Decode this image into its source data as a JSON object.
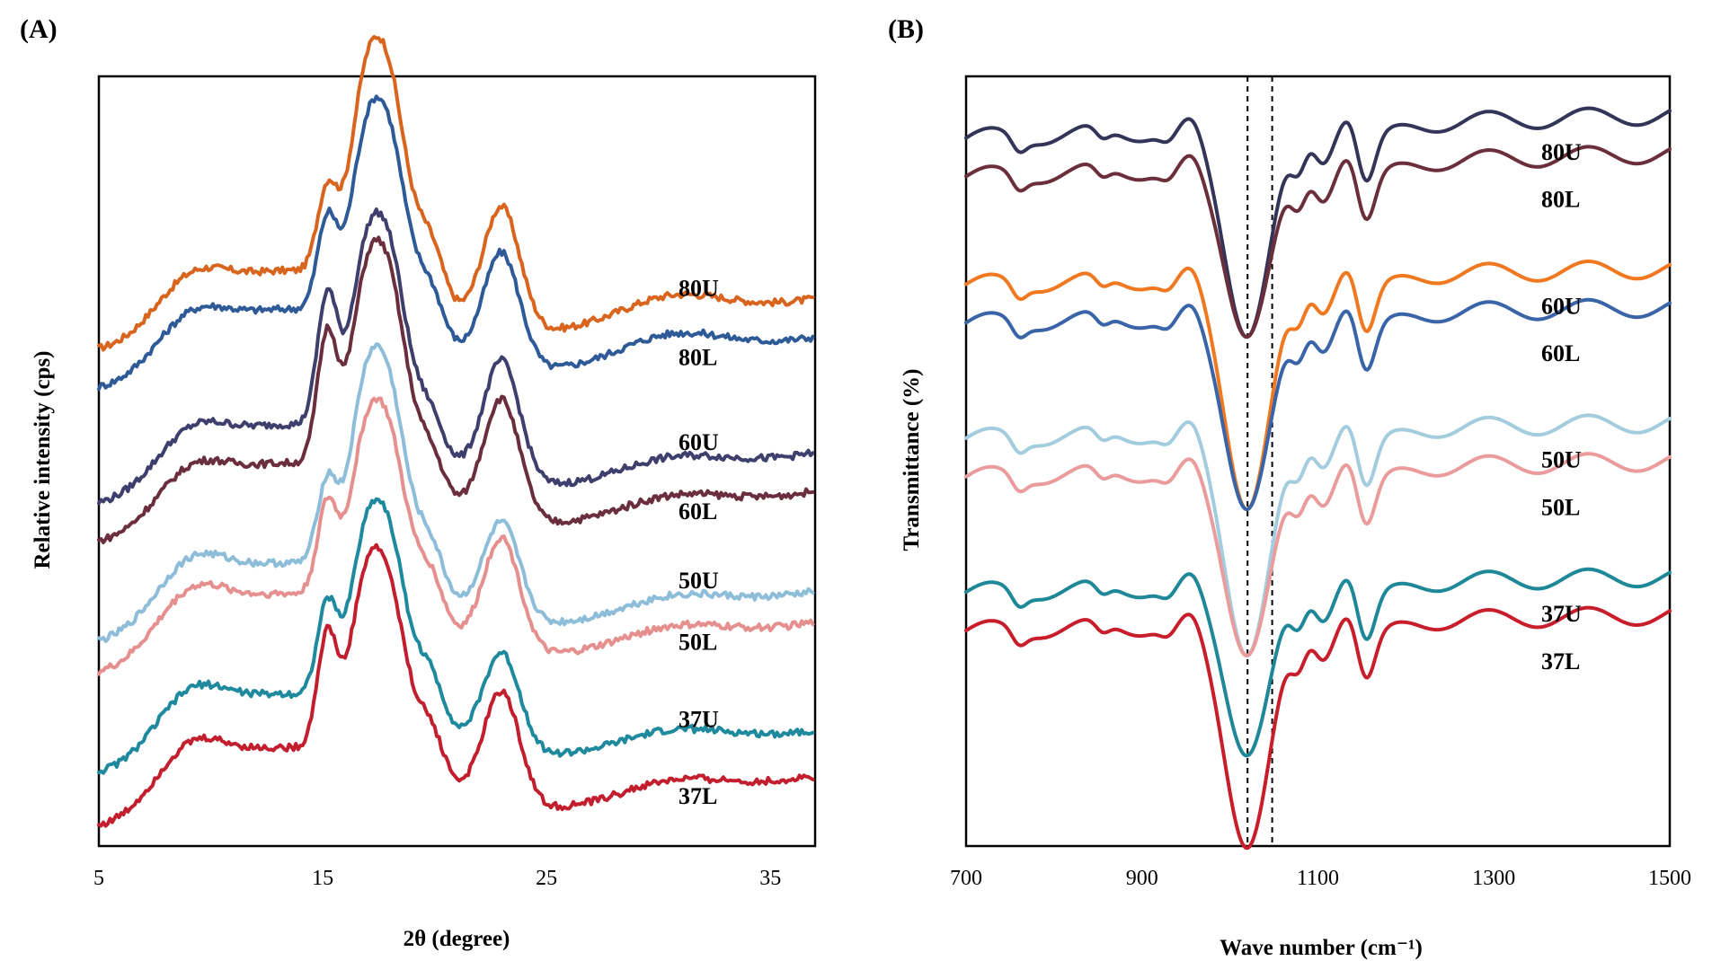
{
  "chart_data": [
    {
      "panel_label": "(A)",
      "type": "line",
      "xlabel": "2θ (degree)",
      "ylabel": "Relative intensity  (cps)",
      "xlim": [
        5,
        37
      ],
      "xticks": [
        "5",
        "15",
        "25",
        "35"
      ],
      "yticks_shown": false,
      "legend": "none (inline labels at right end of each trace)",
      "ylim": [
        0,
        100
      ],
      "series": [
        {
          "name": "80U",
          "color": "#D9641E",
          "baseline": 64,
          "peaks": [
            [
              9.0,
              6
            ],
            [
              15.2,
              11
            ],
            [
              16.8,
              20
            ],
            [
              18.0,
              26
            ],
            [
              19.8,
              8
            ],
            [
              23.0,
              15
            ],
            [
              30.5,
              4
            ]
          ],
          "end": 71
        },
        {
          "name": "80L",
          "color": "#2E5B98",
          "baseline": 59,
          "peaks": [
            [
              9.0,
              6
            ],
            [
              15.2,
              12
            ],
            [
              16.8,
              18
            ],
            [
              18.0,
              24
            ],
            [
              19.8,
              7
            ],
            [
              23.0,
              14
            ],
            [
              30.5,
              4
            ]
          ],
          "end": 66
        },
        {
          "name": "60U",
          "color": "#3F3F6E",
          "baseline": 44,
          "peaks": [
            [
              9.0,
              6
            ],
            [
              15.2,
              17
            ],
            [
              16.8,
              18
            ],
            [
              18.0,
              24
            ],
            [
              19.8,
              6
            ],
            [
              23.0,
              15
            ],
            [
              30.5,
              3
            ]
          ],
          "end": 51
        },
        {
          "name": "60L",
          "color": "#6A2E3E",
          "baseline": 39,
          "peaks": [
            [
              9.0,
              6
            ],
            [
              15.2,
              17
            ],
            [
              16.8,
              19
            ],
            [
              18.0,
              25
            ],
            [
              19.8,
              6
            ],
            [
              23.0,
              15
            ],
            [
              30.5,
              3
            ]
          ],
          "end": 46
        },
        {
          "name": "50U",
          "color": "#8DBDD8",
          "baseline": 26,
          "peaks": [
            [
              9.0,
              7
            ],
            [
              15.2,
              11
            ],
            [
              16.8,
              19
            ],
            [
              18.0,
              24
            ],
            [
              19.8,
              7
            ],
            [
              23.0,
              12
            ],
            [
              30.5,
              3
            ]
          ],
          "end": 33
        },
        {
          "name": "50L",
          "color": "#E58F8F",
          "baseline": 22,
          "peaks": [
            [
              9.0,
              7
            ],
            [
              15.2,
              12
            ],
            [
              16.8,
              17
            ],
            [
              18.0,
              22
            ],
            [
              19.8,
              7
            ],
            [
              23.0,
              14
            ],
            [
              30.5,
              3
            ]
          ],
          "end": 29
        },
        {
          "name": "37U",
          "color": "#1F8A9E",
          "baseline": 9,
          "peaks": [
            [
              9.0,
              7
            ],
            [
              15.2,
              12
            ],
            [
              16.8,
              17
            ],
            [
              18.0,
              22
            ],
            [
              19.8,
              7
            ],
            [
              23.0,
              12
            ],
            [
              30.5,
              3
            ]
          ],
          "end": 15
        },
        {
          "name": "37L",
          "color": "#C21E2E",
          "baseline": 2,
          "peaks": [
            [
              9.0,
              7
            ],
            [
              15.2,
              15
            ],
            [
              16.8,
              18
            ],
            [
              18.0,
              22
            ],
            [
              19.8,
              7
            ],
            [
              23.0,
              14
            ],
            [
              30.5,
              3
            ]
          ],
          "end": 9
        }
      ]
    },
    {
      "panel_label": "(B)",
      "type": "line",
      "xlabel": "Wave number  (cm⁻¹)",
      "ylabel": "Transmittance  (%)",
      "xlim": [
        700,
        1500
      ],
      "xticks": [
        "700",
        "900",
        "1100",
        "1300",
        "1500"
      ],
      "yticks_shown": false,
      "reference_lines_x": [
        1020,
        1048
      ],
      "legend": "none (inline labels at right end of each trace)",
      "ylim": [
        0,
        100
      ],
      "series": [
        {
          "name": "80U",
          "color": "#343459",
          "baseline": 92,
          "minimum": 66,
          "end": 95
        },
        {
          "name": "80L",
          "color": "#6B2F3C",
          "baseline": 87,
          "minimum": 66,
          "end": 90
        },
        {
          "name": "60U",
          "color": "#F07820",
          "baseline": 73,
          "minimum": 44,
          "end": 75
        },
        {
          "name": "60L",
          "color": "#3A64A8",
          "baseline": 68,
          "minimum": 44,
          "end": 70
        },
        {
          "name": "50U",
          "color": "#A3CCDE",
          "baseline": 53,
          "minimum": 25,
          "end": 55
        },
        {
          "name": "50L",
          "color": "#EA9C9C",
          "baseline": 48,
          "minimum": 25,
          "end": 50
        },
        {
          "name": "37U",
          "color": "#1E8798",
          "baseline": 33,
          "minimum": 12,
          "end": 35
        },
        {
          "name": "37L",
          "color": "#C81E2C",
          "baseline": 28,
          "minimum": 0,
          "end": 30
        }
      ]
    }
  ]
}
